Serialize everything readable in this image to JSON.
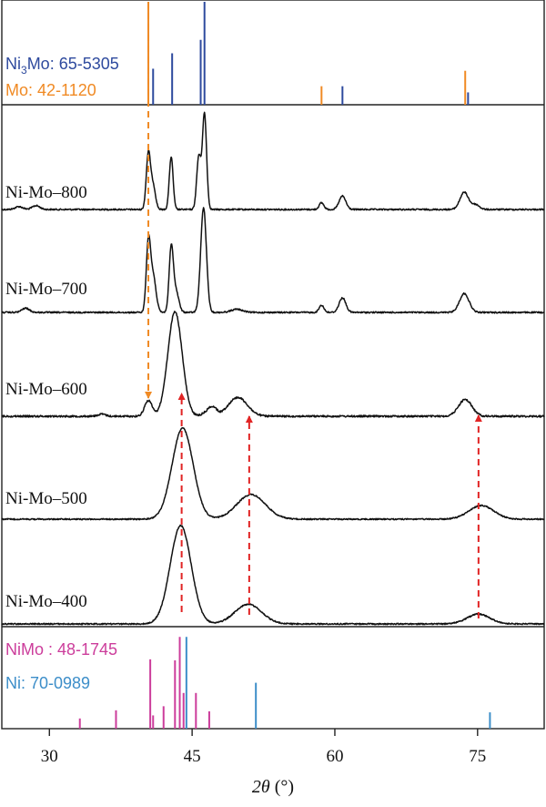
{
  "chart_data": {
    "type": "line",
    "x_axis": {
      "label_symbol": "2θ",
      "label_unit": "(°)",
      "range": [
        25,
        82
      ],
      "ticks": [
        30,
        45,
        60,
        75
      ],
      "tick_labels": [
        "30",
        "45",
        "60",
        "75"
      ]
    },
    "reference_panels": [
      {
        "position": "top",
        "patterns": [
          {
            "name_main": "Ni",
            "name_sub": "3",
            "name_rest": "Mo: 65-5305",
            "color": "#2e4a9e",
            "peaks": [
              {
                "x": 40.9,
                "h": 0.35
              },
              {
                "x": 42.9,
                "h": 0.5
              },
              {
                "x": 45.9,
                "h": 0.63
              },
              {
                "x": 46.3,
                "h": 1.0
              },
              {
                "x": 60.8,
                "h": 0.18
              },
              {
                "x": 74.0,
                "h": 0.12
              }
            ]
          },
          {
            "name": "Mo: 42-1120",
            "color": "#f08a24",
            "peaks": [
              {
                "x": 40.4,
                "h": 1.0
              },
              {
                "x": 58.6,
                "h": 0.18
              },
              {
                "x": 73.7,
                "h": 0.33
              }
            ]
          }
        ]
      },
      {
        "position": "bottom",
        "patterns": [
          {
            "name": "NiMo : 48-1745",
            "color": "#cc3d9b",
            "peaks": [
              {
                "x": 33.2,
                "h": 0.1
              },
              {
                "x": 37.0,
                "h": 0.18
              },
              {
                "x": 40.6,
                "h": 0.68
              },
              {
                "x": 40.9,
                "h": 0.13
              },
              {
                "x": 42.0,
                "h": 0.22
              },
              {
                "x": 43.2,
                "h": 0.67
              },
              {
                "x": 43.7,
                "h": 0.9
              },
              {
                "x": 44.1,
                "h": 0.35
              },
              {
                "x": 45.4,
                "h": 0.35
              },
              {
                "x": 46.8,
                "h": 0.17
              }
            ]
          },
          {
            "name": "Ni: 70-0989",
            "color": "#3d8ec9",
            "peaks": [
              {
                "x": 44.4,
                "h": 0.9
              },
              {
                "x": 51.7,
                "h": 0.45
              },
              {
                "x": 76.3,
                "h": 0.16
              }
            ]
          }
        ]
      }
    ],
    "series": [
      {
        "name": "Ni-Mo–800",
        "color": "#111111",
        "peaks": [
          {
            "x": 40.4,
            "h": 0.58,
            "w": 0.22
          },
          {
            "x": 40.9,
            "h": 0.25,
            "w": 0.25
          },
          {
            "x": 42.8,
            "h": 0.55,
            "w": 0.2
          },
          {
            "x": 45.7,
            "h": 0.55,
            "w": 0.22
          },
          {
            "x": 46.3,
            "h": 1.0,
            "w": 0.22
          },
          {
            "x": 58.6,
            "h": 0.07,
            "w": 0.25
          },
          {
            "x": 60.8,
            "h": 0.14,
            "w": 0.35
          },
          {
            "x": 73.6,
            "h": 0.18,
            "w": 0.45
          },
          {
            "x": 74.8,
            "h": 0.05,
            "w": 0.4
          },
          {
            "x": 26.8,
            "h": 0.03,
            "w": 0.4
          },
          {
            "x": 28.6,
            "h": 0.04,
            "w": 0.4
          }
        ]
      },
      {
        "name": "Ni-Mo–700",
        "color": "#111111",
        "peaks": [
          {
            "x": 40.4,
            "h": 0.65,
            "w": 0.22
          },
          {
            "x": 40.9,
            "h": 0.35,
            "w": 0.3
          },
          {
            "x": 42.8,
            "h": 0.6,
            "w": 0.22
          },
          {
            "x": 43.3,
            "h": 0.2,
            "w": 0.3
          },
          {
            "x": 46.2,
            "h": 1.0,
            "w": 0.3
          },
          {
            "x": 49.7,
            "h": 0.03,
            "w": 0.6
          },
          {
            "x": 58.6,
            "h": 0.07,
            "w": 0.25
          },
          {
            "x": 60.8,
            "h": 0.14,
            "w": 0.35
          },
          {
            "x": 73.6,
            "h": 0.18,
            "w": 0.5
          },
          {
            "x": 27.5,
            "h": 0.04,
            "w": 0.4
          }
        ]
      },
      {
        "name": "Ni-Mo–600",
        "color": "#111111",
        "peaks": [
          {
            "x": 40.4,
            "h": 0.15,
            "w": 0.4
          },
          {
            "x": 43.2,
            "h": 1.0,
            "w": 0.75
          },
          {
            "x": 46.6,
            "h": 0.04,
            "w": 0.5
          },
          {
            "x": 47.2,
            "h": 0.07,
            "w": 0.4
          },
          {
            "x": 49.8,
            "h": 0.18,
            "w": 1.0
          },
          {
            "x": 73.7,
            "h": 0.16,
            "w": 0.7
          },
          {
            "x": 35.5,
            "h": 0.02,
            "w": 0.4
          }
        ]
      },
      {
        "name": "Ni-Mo–500",
        "color": "#111111",
        "peaks": [
          {
            "x": 44.0,
            "h": 1.0,
            "w": 1.1
          },
          {
            "x": 51.2,
            "h": 0.27,
            "w": 1.5
          },
          {
            "x": 75.4,
            "h": 0.15,
            "w": 1.3
          }
        ]
      },
      {
        "name": "Ni-Mo–400",
        "color": "#111111",
        "peaks": [
          {
            "x": 43.8,
            "h": 1.0,
            "w": 1.1
          },
          {
            "x": 50.9,
            "h": 0.2,
            "w": 1.4
          },
          {
            "x": 75.1,
            "h": 0.1,
            "w": 1.2
          }
        ]
      }
    ],
    "guide_lines": [
      {
        "style": "dashed",
        "direction": "down",
        "color": "#f08a24",
        "x": 40.4,
        "from": "Mo: 42-1120",
        "to": "Ni-Mo–600"
      },
      {
        "style": "dashed",
        "direction": "up",
        "color": "#e12424",
        "x": 43.9,
        "from": "Ni-Mo–400",
        "to": "Ni-Mo–600"
      },
      {
        "style": "dashed",
        "direction": "up",
        "color": "#e12424",
        "x": 51.0,
        "from": "Ni-Mo–400",
        "to": "Ni-Mo–600"
      },
      {
        "style": "dashed",
        "direction": "up",
        "color": "#e12424",
        "x": 75.1,
        "from": "Ni-Mo–400",
        "to": "Ni-Mo–600"
      }
    ]
  }
}
